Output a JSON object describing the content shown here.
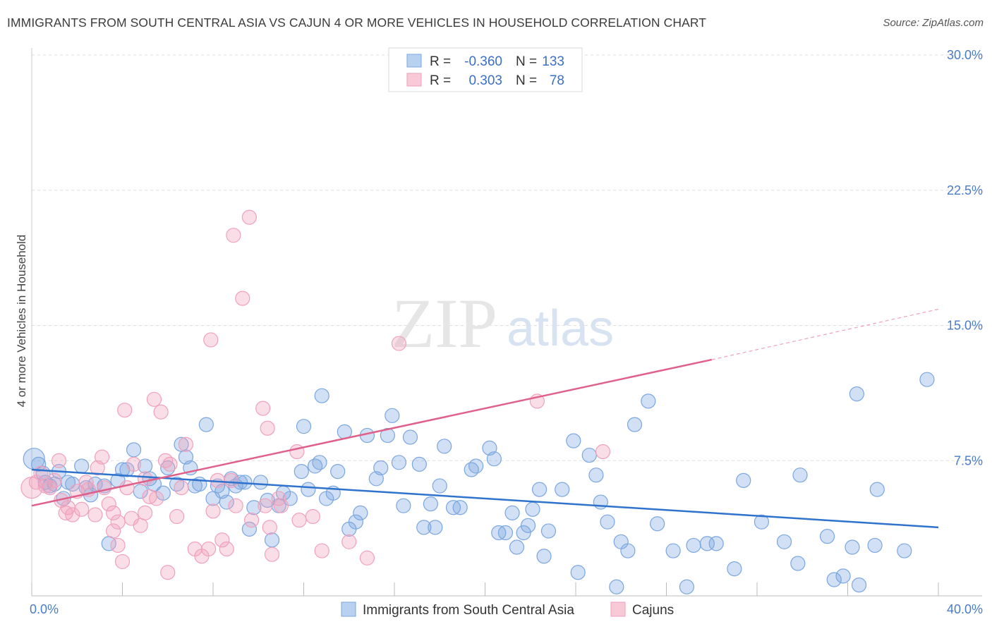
{
  "title": "IMMIGRANTS FROM SOUTH CENTRAL ASIA VS CAJUN 4 OR MORE VEHICLES IN HOUSEHOLD CORRELATION CHART",
  "source": "Source: ZipAtlas.com",
  "watermark": {
    "zip": "ZIP",
    "atlas": "atlas"
  },
  "colors": {
    "blue": "#7aa6e0",
    "blue_line": "#2f73cc",
    "pink": "#f0a0ba",
    "pink_line": "#e0608a",
    "grid": "#dddddd",
    "tick": "#4a7cc7"
  },
  "legend": {
    "blue": {
      "r_label": "R =",
      "r_value": "-0.360",
      "n_label": "N =",
      "n_value": "133"
    },
    "pink": {
      "r_label": "R =",
      "r_value": "0.303",
      "n_label": "N =",
      "n_value": "78"
    }
  },
  "chart_data": {
    "type": "scatter",
    "ylabel": "4 or more Vehicles in Household",
    "xlim": [
      0,
      40
    ],
    "ylim": [
      0,
      30
    ],
    "x_ticks_labels": [
      "0.0%",
      "40.0%"
    ],
    "y_ticks": [
      7.5,
      15.0,
      22.5,
      30.0
    ],
    "y_tick_labels": [
      "7.5%",
      "15.0%",
      "22.5%",
      "30.0%"
    ],
    "grid": true,
    "series": [
      {
        "name": "Immigrants from South Central Asia",
        "color": "#7aa6e0",
        "trend": {
          "x0": 0,
          "y0": 7.0,
          "x1": 40,
          "y1": 3.8
        },
        "points": [
          [
            0.1,
            7.6
          ],
          [
            0.3,
            7.3
          ],
          [
            0.5,
            6.8
          ],
          [
            0.6,
            6.3
          ],
          [
            0.8,
            6.1
          ],
          [
            1.0,
            6.2
          ],
          [
            1.2,
            6.9
          ],
          [
            1.4,
            5.4
          ],
          [
            1.6,
            6.3
          ],
          [
            1.8,
            6.2
          ],
          [
            2.2,
            7.2
          ],
          [
            2.4,
            6.0
          ],
          [
            2.6,
            5.6
          ],
          [
            2.8,
            6.2
          ],
          [
            3.2,
            6.1
          ],
          [
            3.4,
            2.9
          ],
          [
            3.8,
            6.4
          ],
          [
            4.0,
            7.0
          ],
          [
            4.2,
            7.0
          ],
          [
            4.5,
            8.1
          ],
          [
            4.8,
            5.8
          ],
          [
            5.0,
            7.2
          ],
          [
            5.2,
            6.5
          ],
          [
            5.4,
            6.2
          ],
          [
            5.8,
            5.7
          ],
          [
            6.0,
            7.1
          ],
          [
            6.4,
            6.2
          ],
          [
            6.6,
            8.4
          ],
          [
            6.8,
            7.7
          ],
          [
            7.0,
            7.1
          ],
          [
            7.2,
            6.1
          ],
          [
            7.4,
            6.2
          ],
          [
            7.7,
            9.5
          ],
          [
            8.0,
            5.4
          ],
          [
            8.2,
            6.1
          ],
          [
            8.4,
            5.8
          ],
          [
            8.6,
            5.2
          ],
          [
            8.8,
            6.5
          ],
          [
            9.0,
            6.1
          ],
          [
            9.2,
            6.3
          ],
          [
            9.4,
            6.3
          ],
          [
            9.6,
            3.7
          ],
          [
            9.8,
            4.9
          ],
          [
            10.1,
            6.3
          ],
          [
            10.4,
            5.3
          ],
          [
            10.6,
            3.1
          ],
          [
            10.9,
            5.0
          ],
          [
            11.1,
            5.7
          ],
          [
            11.4,
            5.4
          ],
          [
            11.9,
            6.9
          ],
          [
            12.0,
            9.4
          ],
          [
            12.2,
            5.9
          ],
          [
            12.5,
            7.2
          ],
          [
            12.7,
            7.4
          ],
          [
            12.8,
            11.1
          ],
          [
            13.0,
            5.4
          ],
          [
            13.3,
            5.7
          ],
          [
            13.5,
            6.9
          ],
          [
            13.8,
            9.1
          ],
          [
            14.0,
            3.7
          ],
          [
            14.3,
            4.1
          ],
          [
            14.5,
            4.6
          ],
          [
            14.8,
            8.9
          ],
          [
            15.2,
            6.5
          ],
          [
            15.4,
            7.1
          ],
          [
            15.7,
            8.9
          ],
          [
            15.9,
            10.0
          ],
          [
            16.2,
            7.4
          ],
          [
            16.4,
            5.0
          ],
          [
            16.7,
            8.8
          ],
          [
            17.1,
            7.3
          ],
          [
            17.3,
            3.8
          ],
          [
            17.6,
            5.1
          ],
          [
            17.8,
            3.8
          ],
          [
            18.0,
            6.1
          ],
          [
            18.2,
            8.3
          ],
          [
            18.6,
            4.9
          ],
          [
            18.9,
            4.9
          ],
          [
            19.4,
            7.0
          ],
          [
            19.6,
            7.2
          ],
          [
            20.2,
            8.2
          ],
          [
            20.4,
            7.6
          ],
          [
            20.6,
            3.5
          ],
          [
            20.9,
            3.5
          ],
          [
            21.2,
            4.6
          ],
          [
            21.4,
            2.7
          ],
          [
            21.7,
            3.5
          ],
          [
            21.9,
            3.9
          ],
          [
            22.1,
            4.8
          ],
          [
            22.4,
            5.9
          ],
          [
            22.6,
            2.2
          ],
          [
            22.8,
            3.6
          ],
          [
            23.4,
            5.9
          ],
          [
            23.9,
            8.6
          ],
          [
            24.1,
            1.3
          ],
          [
            24.6,
            7.8
          ],
          [
            24.9,
            6.7
          ],
          [
            25.1,
            5.2
          ],
          [
            25.4,
            4.1
          ],
          [
            25.8,
            0.5
          ],
          [
            26.0,
            3.0
          ],
          [
            26.3,
            2.5
          ],
          [
            26.6,
            9.5
          ],
          [
            27.2,
            10.8
          ],
          [
            27.6,
            4.0
          ],
          [
            28.3,
            2.5
          ],
          [
            28.9,
            0.5
          ],
          [
            29.2,
            2.8
          ],
          [
            29.8,
            2.9
          ],
          [
            30.2,
            2.9
          ],
          [
            31.0,
            1.5
          ],
          [
            31.4,
            6.4
          ],
          [
            32.2,
            4.1
          ],
          [
            33.2,
            3.0
          ],
          [
            33.8,
            1.8
          ],
          [
            33.9,
            6.7
          ],
          [
            35.1,
            3.3
          ],
          [
            35.4,
            0.9
          ],
          [
            35.8,
            1.1
          ],
          [
            36.2,
            2.7
          ],
          [
            36.4,
            11.2
          ],
          [
            36.5,
            0.6
          ],
          [
            37.2,
            2.8
          ],
          [
            37.3,
            5.9
          ],
          [
            38.5,
            2.5
          ],
          [
            39.5,
            12.0
          ]
        ]
      },
      {
        "name": "Cajuns",
        "color": "#f0a0ba",
        "trend": {
          "x0": 0,
          "y0": 5.0,
          "x1": 30,
          "y1": 13.1,
          "dash_x1": 40,
          "dash_y1": 15.9
        },
        "points": [
          [
            0.0,
            6.0
          ],
          [
            0.2,
            6.3
          ],
          [
            0.4,
            6.8
          ],
          [
            0.6,
            6.1
          ],
          [
            0.8,
            6.0
          ],
          [
            1.0,
            6.4
          ],
          [
            1.2,
            7.5
          ],
          [
            1.3,
            5.3
          ],
          [
            1.5,
            4.6
          ],
          [
            1.6,
            4.9
          ],
          [
            1.8,
            4.5
          ],
          [
            2.0,
            5.8
          ],
          [
            2.2,
            4.8
          ],
          [
            2.4,
            6.3
          ],
          [
            2.5,
            5.9
          ],
          [
            2.8,
            4.5
          ],
          [
            2.9,
            7.1
          ],
          [
            3.1,
            7.7
          ],
          [
            3.2,
            6.0
          ],
          [
            3.4,
            5.1
          ],
          [
            3.6,
            4.6
          ],
          [
            3.6,
            3.6
          ],
          [
            3.8,
            4.1
          ],
          [
            3.8,
            2.8
          ],
          [
            4.0,
            1.9
          ],
          [
            4.1,
            10.3
          ],
          [
            4.2,
            6.0
          ],
          [
            4.4,
            4.3
          ],
          [
            4.5,
            7.3
          ],
          [
            4.8,
            3.9
          ],
          [
            5.0,
            6.5
          ],
          [
            5.0,
            4.6
          ],
          [
            5.2,
            5.5
          ],
          [
            5.4,
            10.9
          ],
          [
            5.5,
            5.4
          ],
          [
            5.7,
            10.2
          ],
          [
            5.9,
            7.5
          ],
          [
            6.0,
            1.3
          ],
          [
            6.1,
            7.3
          ],
          [
            6.4,
            4.4
          ],
          [
            6.6,
            6.0
          ],
          [
            6.8,
            8.4
          ],
          [
            7.2,
            2.6
          ],
          [
            7.5,
            2.2
          ],
          [
            7.8,
            2.6
          ],
          [
            7.9,
            14.2
          ],
          [
            8.0,
            4.7
          ],
          [
            8.2,
            6.4
          ],
          [
            8.4,
            3.1
          ],
          [
            8.6,
            2.6
          ],
          [
            8.8,
            6.4
          ],
          [
            8.9,
            20.0
          ],
          [
            9.0,
            5.0
          ],
          [
            9.3,
            16.5
          ],
          [
            9.6,
            21.0
          ],
          [
            9.7,
            4.2
          ],
          [
            10.2,
            10.4
          ],
          [
            10.3,
            5.0
          ],
          [
            10.4,
            9.3
          ],
          [
            10.5,
            3.8
          ],
          [
            10.6,
            2.3
          ],
          [
            10.9,
            5.4
          ],
          [
            11.0,
            5.0
          ],
          [
            11.7,
            8.0
          ],
          [
            11.8,
            4.2
          ],
          [
            12.4,
            4.4
          ],
          [
            12.8,
            2.5
          ],
          [
            14.0,
            3.0
          ],
          [
            14.8,
            2.1
          ],
          [
            16.2,
            14.0
          ],
          [
            22.3,
            10.8
          ],
          [
            25.2,
            8.0
          ]
        ]
      }
    ]
  },
  "bottom_legend": [
    "Immigrants from South Central Asia",
    "Cajuns"
  ]
}
